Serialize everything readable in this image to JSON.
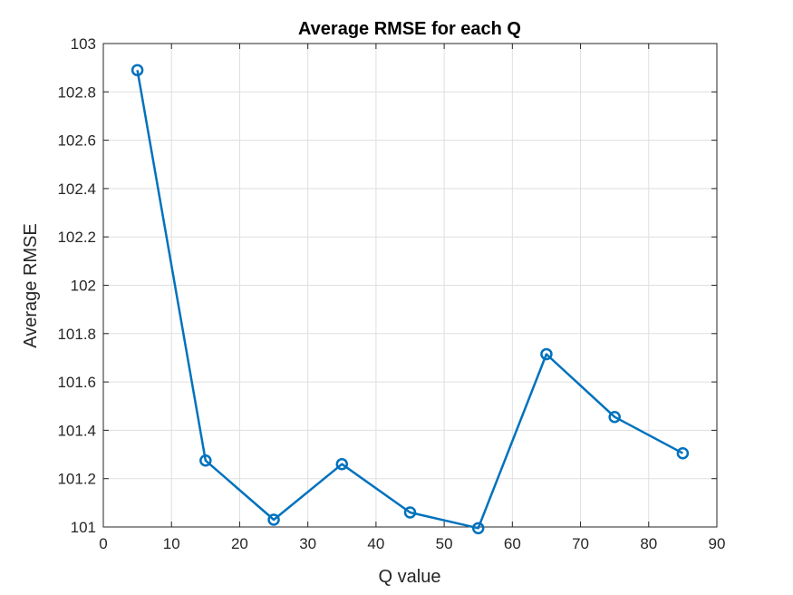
{
  "chart_data": {
    "type": "line",
    "title": "Average RMSE for each Q",
    "xlabel": "Q value",
    "ylabel": "Average RMSE",
    "xlim": [
      0,
      90
    ],
    "ylim": [
      101,
      103
    ],
    "xticks": [
      0,
      10,
      20,
      30,
      40,
      50,
      60,
      70,
      80,
      90
    ],
    "xtick_labels": [
      "0",
      "10",
      "20",
      "30",
      "40",
      "50",
      "60",
      "70",
      "80",
      "90"
    ],
    "yticks": [
      101,
      101.2,
      101.4,
      101.6,
      101.8,
      102,
      102.2,
      102.4,
      102.6,
      102.8,
      103
    ],
    "ytick_labels": [
      "101",
      "101.2",
      "101.4",
      "101.6",
      "101.8",
      "102",
      "102.2",
      "102.4",
      "102.6",
      "102.8",
      "103"
    ],
    "grid": true,
    "marker": "circle",
    "series": [
      {
        "x": [
          5,
          15,
          25,
          35,
          45,
          55,
          65,
          75,
          85
        ],
        "values": [
          102.89,
          101.275,
          101.03,
          101.26,
          101.06,
          100.995,
          101.715,
          101.455,
          101.305
        ],
        "color": "#0072BD"
      }
    ]
  }
}
